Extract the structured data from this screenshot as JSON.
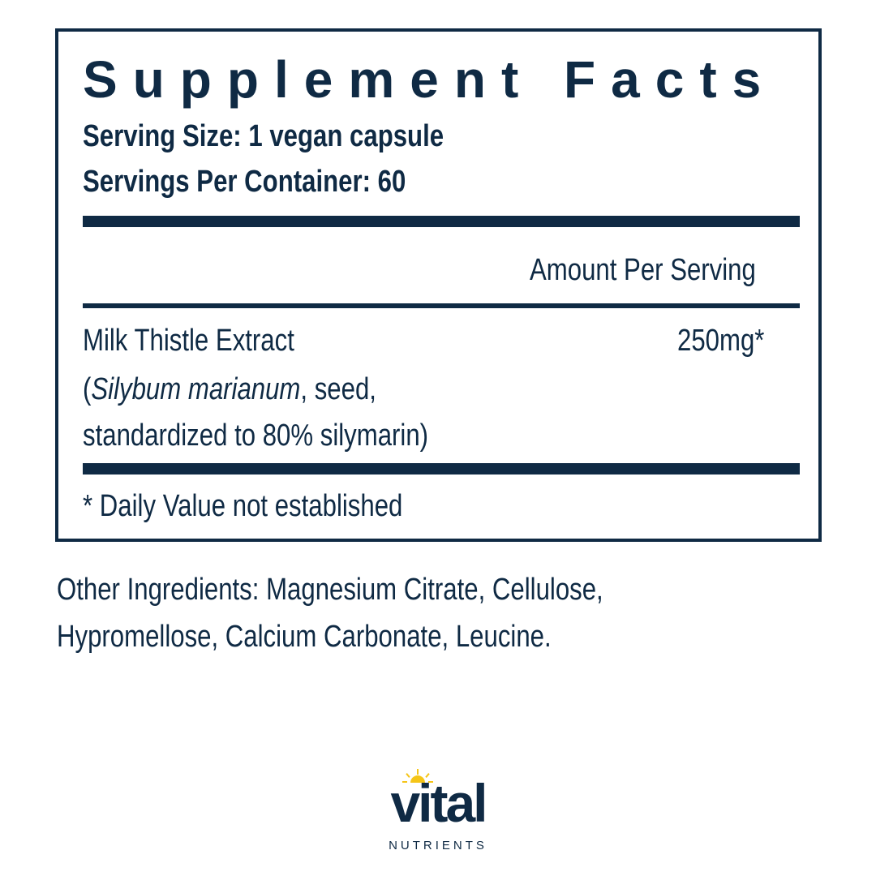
{
  "label": {
    "title": "Supplement Facts",
    "serving_size": "Serving Size: 1 vegan capsule",
    "servings_per_container": "Servings Per Container: 60",
    "amount_header": "Amount Per Serving",
    "ingredient": {
      "name": "Milk Thistle Extract",
      "open_paren": "(",
      "latin_name": "Silybum marianum",
      "detail_1": ", seed,",
      "detail_2": "standardized to 80% silymarin)",
      "amount": "250mg*"
    },
    "footnote": "* Daily Value not established"
  },
  "other_ingredients": {
    "line_1": "Other Ingredients: Magnesium Citrate, Cellulose,",
    "line_2": "Hypromellose, Calcium Carbonate, Leucine."
  },
  "brand": {
    "name": "vital",
    "sub": "NUTRIENTS",
    "colors": {
      "navy": "#0f2a44",
      "sun": "#f5c518"
    }
  }
}
